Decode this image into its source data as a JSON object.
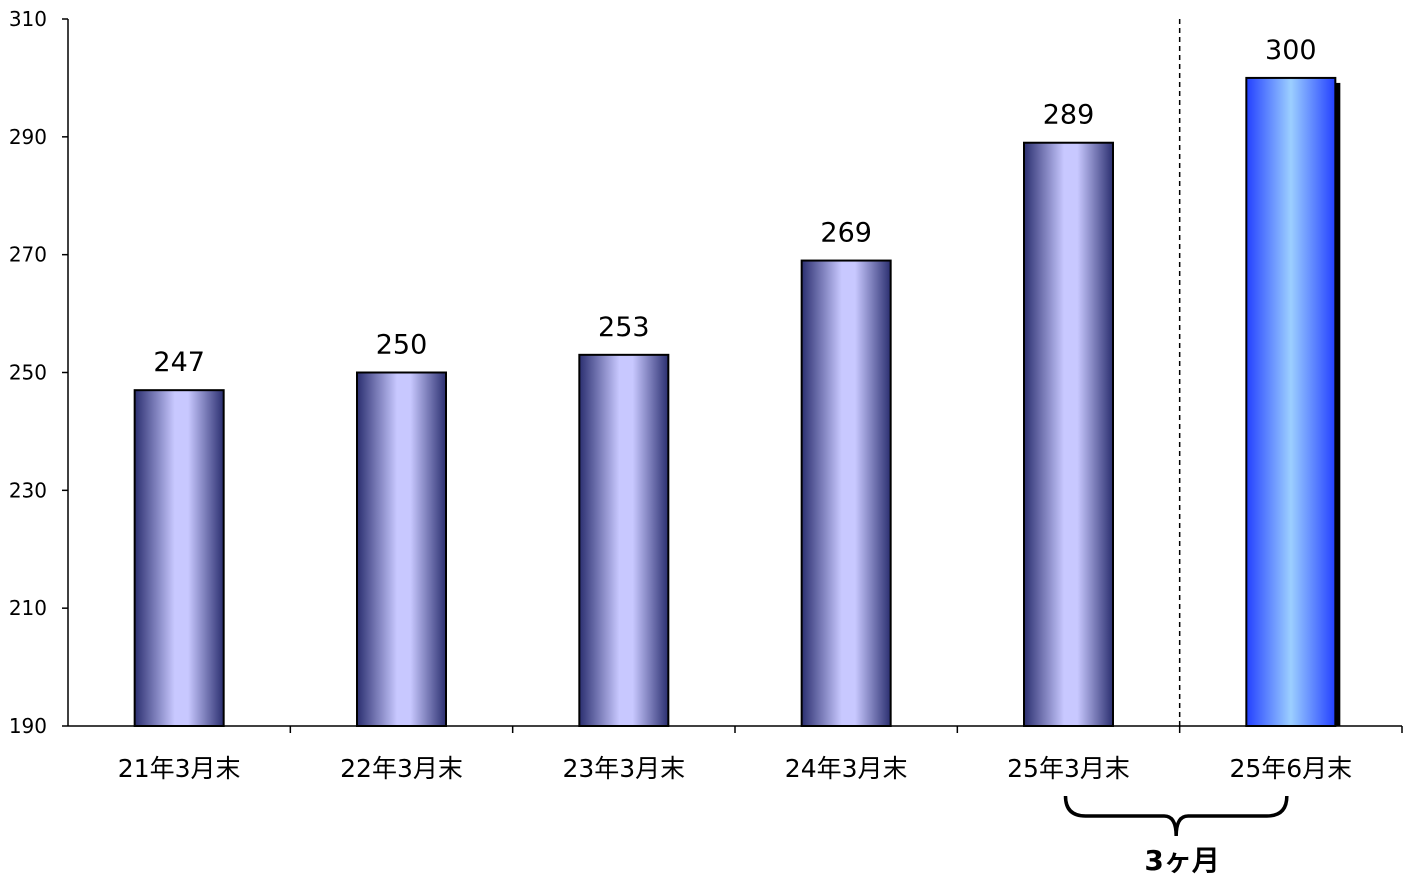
{
  "chart_data": {
    "type": "bar",
    "categories": [
      "21年3月末",
      "22年3月末",
      "23年3月末",
      "24年3月末",
      "25年3月末",
      "25年6月末"
    ],
    "values": [
      247,
      250,
      253,
      269,
      289,
      300
    ],
    "ylim": [
      190,
      310
    ],
    "yticks": [
      190,
      210,
      230,
      250,
      270,
      290,
      310
    ],
    "grid": false,
    "legend": "none",
    "highlight_index": 5,
    "divider_between": [
      4,
      5
    ],
    "annotation": {
      "text": "3ヶ月",
      "spans": [
        4,
        5
      ],
      "style": "curly-brace-below-axis"
    },
    "colors": {
      "bar_edge": "#2b2f70",
      "bar_center": "#c8c8ff",
      "highlight_edge": "#2340ff",
      "highlight_center": "#9ccfff",
      "axis": "#000000"
    }
  }
}
